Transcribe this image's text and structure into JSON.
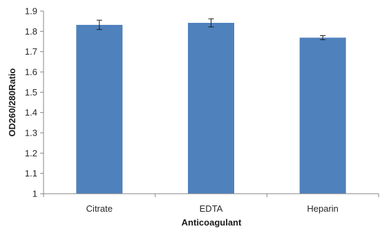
{
  "chart_data": {
    "type": "bar",
    "categories": [
      "Citrate",
      "EDTA",
      "Heparin"
    ],
    "values": [
      1.832,
      1.842,
      1.769
    ],
    "errors": [
      0.023,
      0.02,
      0.01
    ],
    "xlabel": "Anticoagulant",
    "ylabel": "OD260/280Ratio",
    "ylim": [
      1,
      1.9
    ],
    "yticks": [
      "1",
      "1.1",
      "1.2",
      "1.3",
      "1.4",
      "1.5",
      "1.6",
      "1.7",
      "1.8",
      "1.9"
    ],
    "grid": false,
    "bar_color": "#4F81BD",
    "axis_color": "#868686"
  }
}
